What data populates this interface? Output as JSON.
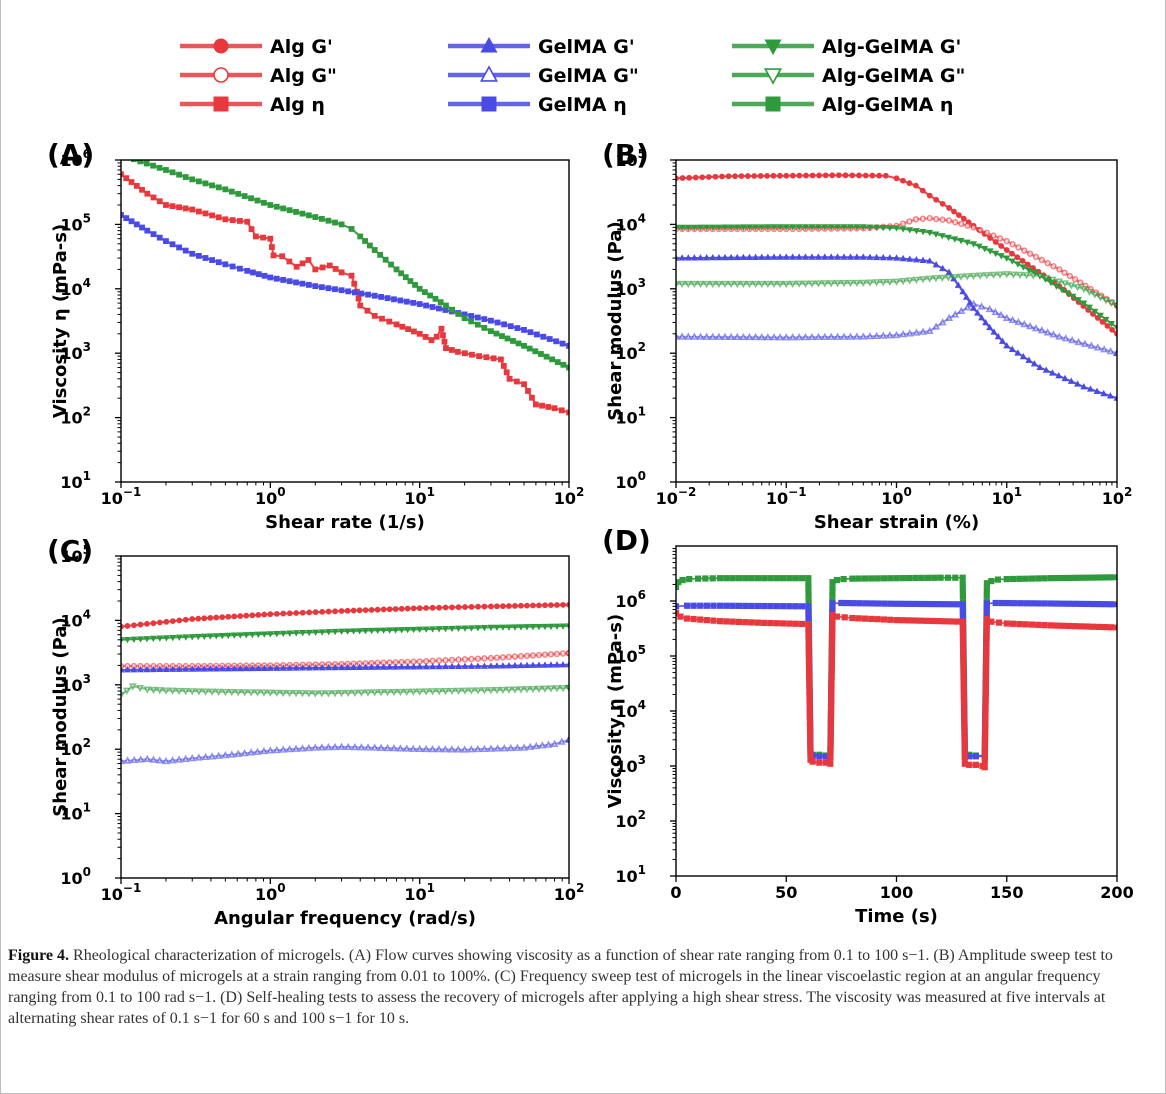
{
  "legend": [
    {
      "label": "Alg G'",
      "color": "#e8383d",
      "marker": "circle-filled"
    },
    {
      "label": "Alg G\"",
      "color": "#e8383d",
      "marker": "circle-open"
    },
    {
      "label": "Alg η",
      "color": "#e8383d",
      "marker": "square"
    },
    {
      "label": "GelMA G'",
      "color": "#4a4ae6",
      "marker": "triangle-up-filled"
    },
    {
      "label": "GelMA G\"",
      "color": "#4a4ae6",
      "marker": "triangle-up-open"
    },
    {
      "label": "GelMA η",
      "color": "#4a4ae6",
      "marker": "square"
    },
    {
      "label": "Alg-GelMA G'",
      "color": "#2e9a3c",
      "marker": "triangle-down-filled"
    },
    {
      "label": "Alg-GelMA G\"",
      "color": "#2e9a3c",
      "marker": "triangle-down-open"
    },
    {
      "label": "Alg-GelMA η",
      "color": "#2e9a3c",
      "marker": "square"
    }
  ],
  "colors": {
    "alg": "#e8383d",
    "gelma": "#4a4ae6",
    "alg_gelma": "#2e9a3c"
  },
  "chart_data": [
    {
      "id": "A",
      "panel_label": "(A)",
      "type": "line",
      "xlabel": "Shear rate (1/s)",
      "ylabel": "Viscosity η (mPa-s)",
      "xscale": "log",
      "yscale": "log",
      "xlim": [
        0.1,
        100
      ],
      "ylim": [
        10,
        1000000
      ],
      "xticks": [
        {
          "m": "10",
          "e": "−1"
        },
        {
          "m": "10",
          "e": "0"
        },
        {
          "m": "10",
          "e": "1"
        },
        {
          "m": "10",
          "e": "2"
        }
      ],
      "yticks": [
        {
          "m": "10",
          "e": "1"
        },
        {
          "m": "10",
          "e": "2"
        },
        {
          "m": "10",
          "e": "3"
        },
        {
          "m": "10",
          "e": "4"
        },
        {
          "m": "10",
          "e": "5"
        },
        {
          "m": "10",
          "e": "6"
        }
      ],
      "series": [
        {
          "name": "Alg η",
          "color": "#e8383d",
          "marker": "square",
          "x": [
            0.1,
            0.15,
            0.2,
            0.3,
            0.5,
            0.7,
            0.8,
            1.0,
            1.05,
            1.2,
            1.5,
            1.8,
            2.0,
            2.5,
            3.0,
            3.5,
            3.8,
            4.0,
            5.0,
            7.0,
            10,
            12,
            13,
            14,
            15,
            18,
            25,
            35,
            40,
            50,
            60,
            80,
            100
          ],
          "y": [
            600000,
            300000,
            200000,
            170000,
            120000,
            110000,
            65000,
            60000,
            33000,
            32000,
            22000,
            28000,
            20000,
            23000,
            18000,
            16000,
            9000,
            5500,
            3800,
            2800,
            2000,
            1600,
            1800,
            2400,
            1200,
            1050,
            900,
            800,
            400,
            330,
            160,
            140,
            120
          ]
        },
        {
          "name": "GelMA η",
          "color": "#4a4ae6",
          "marker": "square",
          "x": [
            0.1,
            0.15,
            0.2,
            0.3,
            0.5,
            0.7,
            1,
            2,
            3,
            5,
            10,
            20,
            30,
            50,
            100
          ],
          "y": [
            140000,
            80000,
            55000,
            35000,
            24000,
            19000,
            15000,
            11000,
            9500,
            7800,
            5800,
            4000,
            3200,
            2300,
            1300
          ]
        },
        {
          "name": "Alg-GelMA η",
          "color": "#2e9a3c",
          "marker": "square",
          "x": [
            0.1,
            0.2,
            0.3,
            0.5,
            1,
            2,
            3,
            3.5,
            4,
            5,
            7,
            10,
            15,
            20,
            30,
            50,
            100
          ],
          "y": [
            1200000,
            700000,
            500000,
            350000,
            200000,
            130000,
            100000,
            85000,
            65000,
            40000,
            20000,
            10000,
            5500,
            3500,
            2200,
            1300,
            600
          ]
        }
      ]
    },
    {
      "id": "B",
      "panel_label": "(B)",
      "type": "line",
      "xlabel": "Shear strain (%)",
      "ylabel": "Shear modulus (Pa)",
      "xscale": "log",
      "yscale": "log",
      "xlim": [
        0.01,
        100
      ],
      "ylim": [
        1,
        100000
      ],
      "xticks": [
        {
          "m": "10",
          "e": "−2"
        },
        {
          "m": "10",
          "e": "−1"
        },
        {
          "m": "10",
          "e": "0"
        },
        {
          "m": "10",
          "e": "1"
        },
        {
          "m": "10",
          "e": "2"
        }
      ],
      "yticks": [
        {
          "m": "10",
          "e": "0"
        },
        {
          "m": "10",
          "e": "1"
        },
        {
          "m": "10",
          "e": "2"
        },
        {
          "m": "10",
          "e": "3"
        },
        {
          "m": "10",
          "e": "4"
        },
        {
          "m": "10",
          "e": "5"
        }
      ],
      "series": [
        {
          "name": "Alg G'",
          "color": "#e8383d",
          "marker": "circle-filled",
          "x": [
            0.01,
            0.03,
            0.1,
            0.3,
            0.8,
            1.0,
            1.5,
            2,
            3,
            5,
            10,
            30,
            100
          ],
          "y": [
            52000,
            56000,
            57000,
            58000,
            57000,
            52000,
            40000,
            28000,
            18000,
            9500,
            4000,
            1100,
            200
          ]
        },
        {
          "name": "Alg G\"",
          "color": "#e8383d",
          "marker": "circle-open",
          "x": [
            0.01,
            0.1,
            0.5,
            1.0,
            1.5,
            2,
            3,
            5,
            10,
            30,
            100
          ],
          "y": [
            8500,
            8500,
            8700,
            9500,
            12000,
            12500,
            11500,
            9000,
            5500,
            2000,
            550
          ]
        },
        {
          "name": "GelMA G'",
          "color": "#4a4ae6",
          "marker": "triangle-up-filled",
          "x": [
            0.01,
            0.1,
            0.5,
            1,
            2,
            3,
            4,
            5,
            7,
            10,
            20,
            50,
            100
          ],
          "y": [
            3000,
            3100,
            3100,
            3000,
            2700,
            1800,
            900,
            500,
            250,
            130,
            60,
            30,
            20
          ]
        },
        {
          "name": "GelMA G\"",
          "color": "#4a4ae6",
          "marker": "triangle-up-open",
          "x": [
            0.01,
            0.1,
            0.5,
            1,
            2,
            3,
            5,
            7,
            10,
            30,
            100
          ],
          "y": [
            180,
            175,
            180,
            190,
            220,
            350,
            580,
            480,
            350,
            180,
            100
          ]
        },
        {
          "name": "Alg-GelMA G'",
          "color": "#2e9a3c",
          "marker": "triangle-down-filled",
          "x": [
            0.01,
            0.1,
            0.5,
            1,
            2,
            5,
            10,
            20,
            50,
            100
          ],
          "y": [
            9000,
            9200,
            9200,
            8800,
            7500,
            5000,
            3000,
            1600,
            600,
            250
          ]
        },
        {
          "name": "Alg-GelMA G\"",
          "color": "#2e9a3c",
          "marker": "triangle-down-open",
          "x": [
            0.01,
            0.1,
            0.5,
            1,
            2,
            5,
            10,
            20,
            50,
            100
          ],
          "y": [
            1200,
            1200,
            1250,
            1300,
            1450,
            1600,
            1700,
            1600,
            1000,
            550
          ]
        }
      ]
    },
    {
      "id": "C",
      "panel_label": "(C)",
      "type": "line",
      "xlabel": "Angular frequency (rad/s)",
      "ylabel": "Shear modulus (Pa)",
      "xscale": "log",
      "yscale": "log",
      "xlim": [
        0.1,
        100
      ],
      "ylim": [
        1,
        100000
      ],
      "xticks": [
        {
          "m": "10",
          "e": "−1"
        },
        {
          "m": "10",
          "e": "0"
        },
        {
          "m": "10",
          "e": "1"
        },
        {
          "m": "10",
          "e": "2"
        }
      ],
      "yticks": [
        {
          "m": "10",
          "e": "0"
        },
        {
          "m": "10",
          "e": "1"
        },
        {
          "m": "10",
          "e": "2"
        },
        {
          "m": "10",
          "e": "3"
        },
        {
          "m": "10",
          "e": "4"
        },
        {
          "m": "10",
          "e": "5"
        }
      ],
      "series": [
        {
          "name": "Alg G'",
          "color": "#e8383d",
          "marker": "circle-filled",
          "x": [
            0.1,
            0.3,
            1,
            3,
            10,
            30,
            100
          ],
          "y": [
            8000,
            10500,
            12500,
            14000,
            15500,
            16500,
            17500
          ]
        },
        {
          "name": "Alg G\"",
          "color": "#e8383d",
          "marker": "circle-open",
          "x": [
            0.1,
            0.3,
            1,
            3,
            10,
            30,
            100
          ],
          "y": [
            1950,
            1950,
            2000,
            2100,
            2300,
            2600,
            3100
          ]
        },
        {
          "name": "GelMA G'",
          "color": "#4a4ae6",
          "marker": "triangle-up-filled",
          "x": [
            0.1,
            0.3,
            1,
            3,
            10,
            30,
            100
          ],
          "y": [
            1700,
            1750,
            1800,
            1850,
            1900,
            1950,
            2050
          ]
        },
        {
          "name": "GelMA G\"",
          "color": "#4a4ae6",
          "marker": "triangle-up-open",
          "x": [
            0.1,
            0.15,
            0.2,
            0.3,
            0.5,
            1,
            2,
            3,
            5,
            10,
            20,
            50,
            80,
            100
          ],
          "y": [
            65,
            70,
            65,
            72,
            80,
            95,
            105,
            108,
            105,
            100,
            98,
            105,
            120,
            140
          ]
        },
        {
          "name": "Alg-GelMA G'",
          "color": "#2e9a3c",
          "marker": "triangle-down-filled",
          "x": [
            0.1,
            0.3,
            1,
            3,
            10,
            30,
            100
          ],
          "y": [
            5000,
            5600,
            6200,
            6800,
            7300,
            7800,
            8200
          ]
        },
        {
          "name": "Alg-GelMA G\"",
          "color": "#2e9a3c",
          "marker": "triangle-down-open",
          "x": [
            0.1,
            0.12,
            0.15,
            0.2,
            0.3,
            0.5,
            1,
            2,
            3,
            5,
            10,
            30,
            100
          ],
          "y": [
            700,
            950,
            850,
            820,
            800,
            780,
            760,
            740,
            750,
            770,
            790,
            830,
            900
          ]
        }
      ]
    },
    {
      "id": "D",
      "panel_label": "(D)",
      "type": "line",
      "xlabel": "Time (s)",
      "ylabel": "Viscosity η (mPa-s)",
      "xscale": "linear",
      "yscale": "log",
      "xlim": [
        0,
        200
      ],
      "ylim": [
        10,
        10000000
      ],
      "xticks": [
        {
          "m": "0",
          "e": ""
        },
        {
          "m": "50",
          "e": ""
        },
        {
          "m": "100",
          "e": ""
        },
        {
          "m": "150",
          "e": ""
        },
        {
          "m": "200",
          "e": ""
        }
      ],
      "xtick_values": [
        0,
        50,
        100,
        150,
        200
      ],
      "yticks": [
        {
          "m": "10",
          "e": "1"
        },
        {
          "m": "10",
          "e": "2"
        },
        {
          "m": "10",
          "e": "3"
        },
        {
          "m": "10",
          "e": "4"
        },
        {
          "m": "10",
          "e": "5"
        },
        {
          "m": "10",
          "e": "6"
        }
      ],
      "series": [
        {
          "name": "Alg-GelMA η",
          "color": "#2e9a3c",
          "marker": "square",
          "x": [
            0,
            1,
            3,
            6,
            10,
            20,
            40,
            60,
            61,
            62,
            65,
            68,
            70,
            71,
            73,
            76,
            80,
            100,
            120,
            130,
            131,
            133,
            136,
            140,
            141,
            143,
            146,
            150,
            170,
            200
          ],
          "y": [
            1800000,
            2200000,
            2400000,
            2500000,
            2550000,
            2600000,
            2600000,
            2600000,
            2000,
            1600,
            1600,
            1550,
            1550,
            2200000,
            2400000,
            2500000,
            2550000,
            2600000,
            2650000,
            2650000,
            2000,
            1600,
            1550,
            1550,
            2100000,
            2300000,
            2450000,
            2500000,
            2600000,
            2700000
          ]
        },
        {
          "name": "GelMA η",
          "color": "#4a4ae6",
          "marker": "square",
          "x": [
            0,
            5,
            20,
            40,
            60,
            61,
            62,
            65,
            68,
            70,
            71,
            75,
            100,
            130,
            131,
            133,
            136,
            140,
            141,
            145,
            170,
            200
          ],
          "y": [
            800000,
            820000,
            820000,
            810000,
            800000,
            1800,
            1550,
            1500,
            1500,
            1500,
            900000,
            920000,
            890000,
            870000,
            1700,
            1500,
            1500,
            1500,
            900000,
            920000,
            900000,
            870000
          ]
        },
        {
          "name": "Alg η",
          "color": "#e8383d",
          "marker": "square",
          "x": [
            0,
            2,
            5,
            20,
            40,
            60,
            61,
            62,
            65,
            68,
            70,
            71,
            73,
            80,
            100,
            130,
            131,
            133,
            136,
            139,
            140,
            141,
            143,
            150,
            170,
            200
          ],
          "y": [
            600000,
            520000,
            480000,
            430000,
            400000,
            380000,
            1300,
            1200,
            1150,
            1150,
            1100,
            560000,
            520000,
            490000,
            450000,
            420000,
            1100,
            1050,
            1050,
            1000,
            950,
            470000,
            420000,
            390000,
            360000,
            330000
          ]
        }
      ]
    }
  ],
  "caption": {
    "label": "Figure 4.",
    "text": " Rheological characterization of microgels. (A) Flow curves showing viscosity as a function of shear rate ranging from 0.1 to 100 s−1. (B) Amplitude sweep test to measure shear modulus of microgels at a strain ranging from 0.01 to 100%. (C) Frequency sweep test of microgels in the linear viscoelastic region at an angular frequency ranging from 0.1 to 100 rad s−1. (D) Self-healing tests to assess the recovery of microgels after applying a high shear stress. The viscosity was measured at five intervals at alternating shear rates of 0.1 s−1 for 60 s and 100 s−1 for 10 s."
  }
}
